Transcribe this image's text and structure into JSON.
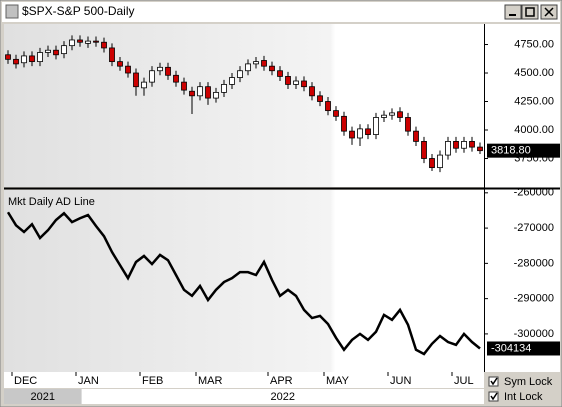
{
  "window_title": "$SPX-S&P 500-Daily",
  "controls": [
    {
      "label": "Sym Lock",
      "checked": true
    },
    {
      "label": "Int Lock",
      "checked": true
    }
  ],
  "chart_data": [
    {
      "type": "candlestick",
      "up_color": "#ffffff",
      "down_color": "#cc0000",
      "open": [
        4660,
        4620,
        4590,
        4650,
        4600,
        4680,
        4700,
        4670,
        4740,
        4790,
        4760,
        4780,
        4770,
        4720,
        4600,
        4560,
        4500,
        4370,
        4420,
        4520,
        4550,
        4480,
        4420,
        4340,
        4300,
        4380,
        4280,
        4330,
        4400,
        4460,
        4520,
        4580,
        4610,
        4560,
        4520,
        4470,
        4400,
        4430,
        4380,
        4300,
        4250,
        4170,
        4120,
        3990,
        3930,
        4010,
        3960,
        4110,
        4130,
        4160,
        4110,
        3990,
        3900,
        3750,
        3670,
        3780,
        3900,
        3840,
        3900,
        3850
      ],
      "high": [
        4700,
        4660,
        4690,
        4690,
        4720,
        4740,
        4740,
        4780,
        4830,
        4830,
        4820,
        4820,
        4810,
        4760,
        4640,
        4600,
        4540,
        4460,
        4560,
        4590,
        4590,
        4520,
        4460,
        4380,
        4420,
        4420,
        4370,
        4440,
        4500,
        4560,
        4620,
        4640,
        4650,
        4600,
        4560,
        4510,
        4470,
        4470,
        4420,
        4340,
        4290,
        4210,
        4160,
        4030,
        4050,
        4050,
        4150,
        4170,
        4190,
        4200,
        4150,
        4030,
        3940,
        3790,
        3820,
        3940,
        3940,
        3940,
        3940,
        3890
      ],
      "low": [
        4580,
        4540,
        4550,
        4560,
        4560,
        4640,
        4620,
        4630,
        4700,
        4730,
        4720,
        4730,
        4680,
        4560,
        4520,
        4460,
        4300,
        4300,
        4380,
        4480,
        4440,
        4380,
        4310,
        4140,
        4260,
        4220,
        4240,
        4290,
        4360,
        4420,
        4480,
        4540,
        4520,
        4480,
        4430,
        4360,
        4360,
        4340,
        4260,
        4210,
        4130,
        4080,
        3950,
        3870,
        3860,
        3920,
        3920,
        4070,
        4090,
        4070,
        3950,
        3860,
        3710,
        3640,
        3630,
        3740,
        3800,
        3800,
        3810,
        3790
      ],
      "close": [
        4620,
        4580,
        4650,
        4600,
        4680,
        4700,
        4660,
        4740,
        4790,
        4770,
        4780,
        4770,
        4720,
        4600,
        4560,
        4500,
        4380,
        4420,
        4520,
        4550,
        4480,
        4420,
        4350,
        4300,
        4380,
        4280,
        4330,
        4400,
        4460,
        4520,
        4580,
        4600,
        4560,
        4520,
        4470,
        4400,
        4430,
        4380,
        4300,
        4250,
        4170,
        4120,
        3990,
        3930,
        4010,
        3960,
        4110,
        4130,
        4150,
        4110,
        3990,
        3900,
        3750,
        3670,
        3780,
        3900,
        3840,
        3900,
        3850,
        3818.8
      ],
      "ylim": [
        3500,
        4930
      ],
      "yticks": [
        {
          "value": 3750,
          "label": "3750.00"
        },
        {
          "value": 4000,
          "label": "4000.00"
        },
        {
          "value": 4250,
          "label": "4250.00"
        },
        {
          "value": 4500,
          "label": "4500.00"
        },
        {
          "value": 4750,
          "label": "4750.00"
        }
      ],
      "last_value": 3818.8,
      "last_value_label": "3818.80"
    },
    {
      "type": "line",
      "title": "Mkt Daily AD Line",
      "color": "#000000",
      "categories": [
        null,
        "DEC",
        null,
        null,
        null,
        null,
        null,
        null,
        null,
        "JAN",
        null,
        null,
        null,
        null,
        null,
        null,
        null,
        "FEB",
        null,
        null,
        null,
        null,
        null,
        null,
        "MAR",
        null,
        null,
        null,
        null,
        null,
        null,
        null,
        null,
        "APR",
        null,
        null,
        null,
        null,
        null,
        null,
        "MAY",
        null,
        null,
        null,
        null,
        null,
        null,
        null,
        "JUN",
        null,
        null,
        null,
        null,
        null,
        null,
        null,
        "JUL",
        null,
        null,
        null
      ],
      "values": [
        -265500,
        -269200,
        -271100,
        -268900,
        -272800,
        -270600,
        -267700,
        -265800,
        -268300,
        -267200,
        -266300,
        -269400,
        -272300,
        -276800,
        -280500,
        -284200,
        -279600,
        -277900,
        -280200,
        -277600,
        -279100,
        -283300,
        -287500,
        -289200,
        -286400,
        -290400,
        -287500,
        -285300,
        -284200,
        -282500,
        -282500,
        -283300,
        -279600,
        -284700,
        -289200,
        -287500,
        -289200,
        -293200,
        -295500,
        -294900,
        -297200,
        -301100,
        -304500,
        -301700,
        -300000,
        -301700,
        -299400,
        -294600,
        -296000,
        -293200,
        -297400,
        -304500,
        -305700,
        -302800,
        -300600,
        -302300,
        -303100,
        -300000,
        -302300,
        -304134
      ],
      "ylim": [
        -310800,
        -259200
      ],
      "yticks": [
        -260000,
        -270000,
        -280000,
        -290000,
        -300000
      ],
      "last_value": -304134,
      "year_labels": [
        "2021",
        "2022"
      ]
    }
  ]
}
